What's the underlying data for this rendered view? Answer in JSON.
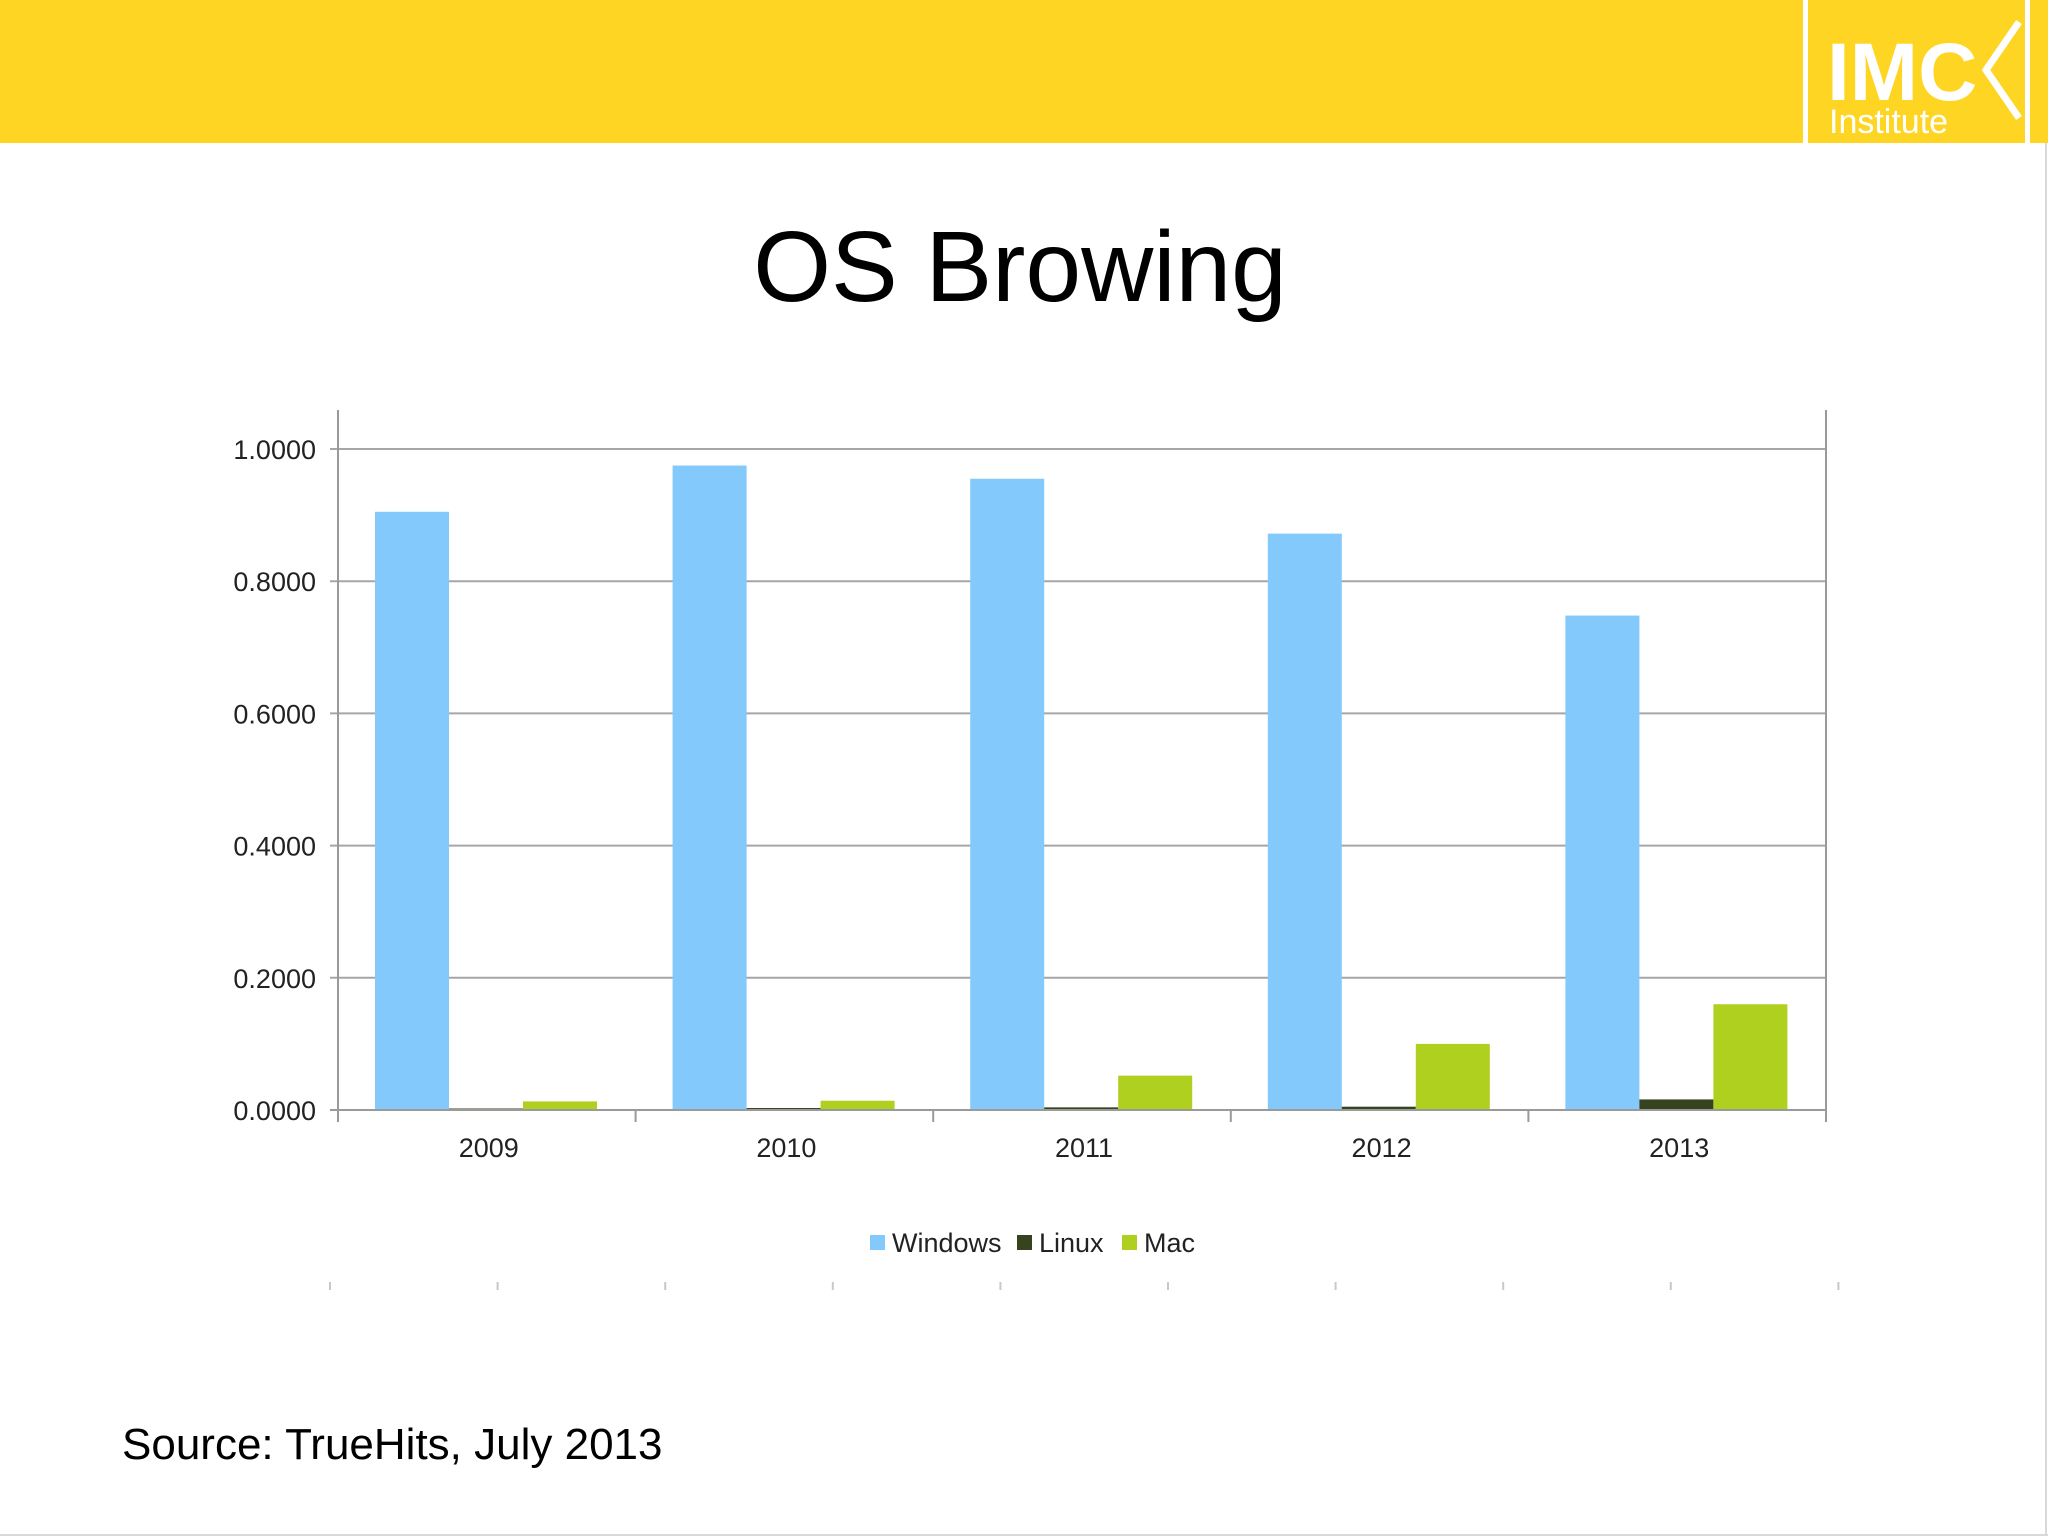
{
  "header": {
    "accent_color": "#fed523",
    "logo": {
      "line1": "IMC",
      "line2": "Institute",
      "color": "#fed523"
    }
  },
  "slide": {
    "title": "OS Browing",
    "source": "Source: TrueHits, July 2013"
  },
  "chart_data": {
    "type": "bar",
    "categories": [
      "2009",
      "2010",
      "2011",
      "2012",
      "2013"
    ],
    "series": [
      {
        "name": "Windows",
        "color": "#83c9fb",
        "values": [
          0.905,
          0.975,
          0.955,
          0.872,
          0.748
        ]
      },
      {
        "name": "Linux",
        "color": "#35431e",
        "values": [
          0.002,
          0.003,
          0.004,
          0.005,
          0.016
        ]
      },
      {
        "name": "Mac",
        "color": "#b0d01f",
        "values": [
          0.013,
          0.014,
          0.052,
          0.1,
          0.16
        ]
      }
    ],
    "yticks": [
      "0.0000",
      "0.2000",
      "0.4000",
      "0.6000",
      "0.8000",
      "1.0000"
    ],
    "ylim": [
      0,
      1.0
    ],
    "grid": true,
    "legend": "bottom-center"
  }
}
